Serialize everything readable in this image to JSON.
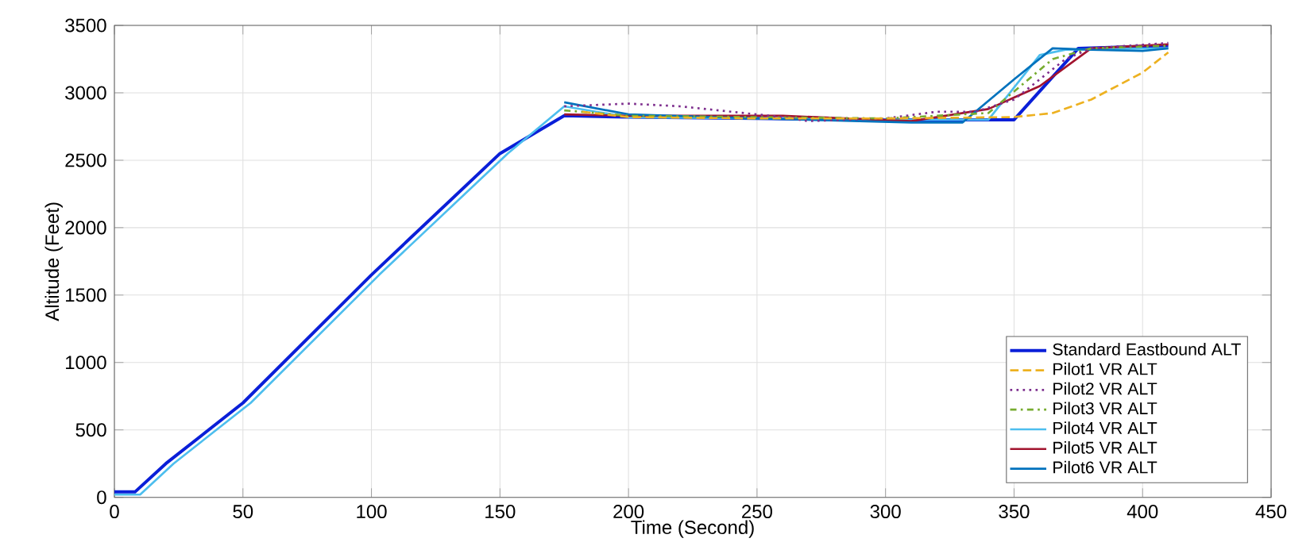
{
  "chart_data": {
    "type": "line",
    "xlabel": "Time (Second)",
    "ylabel": "Altitude (Feet)",
    "xlim": [
      0,
      450
    ],
    "ylim": [
      0,
      3500
    ],
    "xticks": [
      0,
      50,
      100,
      150,
      200,
      250,
      300,
      350,
      400,
      450
    ],
    "yticks": [
      0,
      500,
      1000,
      1500,
      2000,
      2500,
      3000,
      3500
    ],
    "grid": true,
    "legend": "bottom right",
    "series": [
      {
        "name": "Standard Eastbound ALT",
        "color": "#0a1fd8",
        "line_style": "solid",
        "x": [
          0,
          8,
          20,
          50,
          100,
          150,
          175,
          200,
          250,
          300,
          350,
          375,
          410
        ],
        "values": [
          40,
          40,
          250,
          700,
          1650,
          2550,
          2830,
          2820,
          2810,
          2800,
          2800,
          3330,
          3350
        ]
      },
      {
        "name": "Pilot1 VR ALT",
        "color": "#edb120",
        "line_style": "dashed",
        "x": [
          182,
          200,
          250,
          300,
          350,
          365,
          380,
          400,
          410
        ],
        "values": [
          2860,
          2820,
          2810,
          2810,
          2820,
          2850,
          2950,
          3150,
          3300
        ]
      },
      {
        "name": "Pilot2 VR ALT",
        "color": "#7e2f8e",
        "line_style": "dotted",
        "x": [
          175,
          200,
          220,
          260,
          270,
          300,
          320,
          335,
          350,
          370,
          380,
          410
        ],
        "values": [
          2900,
          2920,
          2900,
          2820,
          2790,
          2810,
          2860,
          2860,
          2950,
          3250,
          3330,
          3370
        ]
      },
      {
        "name": "Pilot3 VR ALT",
        "color": "#77ac30",
        "line_style": "dashdotted",
        "x": [
          175,
          200,
          250,
          300,
          340,
          365,
          380,
          410
        ],
        "values": [
          2870,
          2830,
          2820,
          2810,
          2850,
          3250,
          3330,
          3350
        ]
      },
      {
        "name": "Pilot4 VR ALT",
        "color": "#4dbeee",
        "line_style": "solid",
        "x": [
          0,
          10,
          23,
          53,
          103,
          153,
          175,
          200,
          250,
          300,
          340,
          360,
          370,
          410
        ],
        "values": [
          20,
          20,
          250,
          700,
          1650,
          2550,
          2900,
          2820,
          2810,
          2800,
          2800,
          3280,
          3320,
          3330
        ]
      },
      {
        "name": "Pilot5 VR ALT",
        "color": "#a2142f",
        "line_style": "solid",
        "x": [
          175,
          200,
          260,
          310,
          340,
          360,
          380,
          410
        ],
        "values": [
          2840,
          2830,
          2830,
          2790,
          2880,
          3050,
          3330,
          3360
        ]
      },
      {
        "name": "Pilot6 VR ALT",
        "color": "#0072bd",
        "line_style": "solid",
        "x": [
          175,
          200,
          250,
          310,
          330,
          350,
          365,
          380,
          400,
          410
        ],
        "values": [
          2930,
          2840,
          2810,
          2780,
          2780,
          3100,
          3330,
          3320,
          3310,
          3330
        ]
      }
    ]
  }
}
